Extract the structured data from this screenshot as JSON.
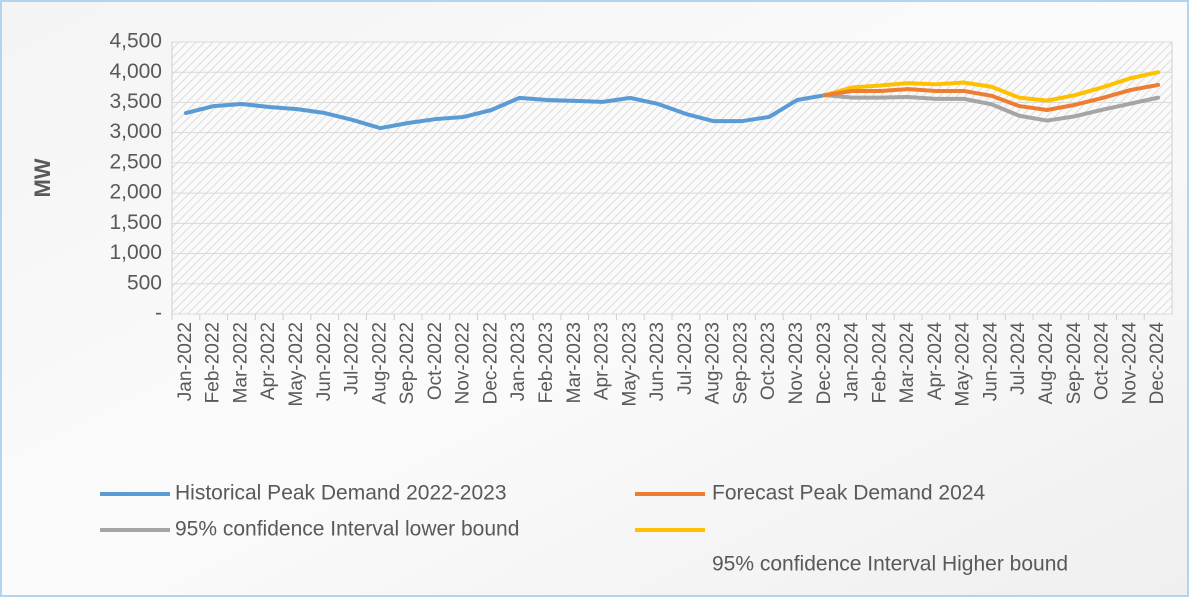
{
  "chart_data": {
    "type": "line",
    "y_label": "MW",
    "categories": [
      "Jan-2022",
      "Feb-2022",
      "Mar-2022",
      "Apr-2022",
      "May-2022",
      "Jun-2022",
      "Jul-2022",
      "Aug-2022",
      "Sep-2022",
      "Oct-2022",
      "Nov-2022",
      "Dec-2022",
      "Jan-2023",
      "Feb-2023",
      "Mar-2023",
      "Apr-2023",
      "May-2023",
      "Jun-2023",
      "Jul-2023",
      "Aug-2023",
      "Sep-2023",
      "Oct-2023",
      "Nov-2023",
      "Dec-2023",
      "Jan-2024",
      "Feb-2024",
      "Mar-2024",
      "Apr-2024",
      "May-2024",
      "Jun-2024",
      "Jul-2024",
      "Aug-2024",
      "Sep-2024",
      "Oct-2024",
      "Nov-2024",
      "Dec-2024"
    ],
    "series": [
      {
        "name": "Historical Peak Demand 2022-2023",
        "color": "#5b9bd5",
        "values": [
          3325,
          3440,
          3475,
          3425,
          3390,
          3325,
          3210,
          3075,
          3160,
          3225,
          3260,
          3375,
          3575,
          3540,
          3525,
          3510,
          3575,
          3475,
          3310,
          3190,
          3190,
          3260,
          3540,
          3620,
          null,
          null,
          null,
          null,
          null,
          null,
          null,
          null,
          null,
          null,
          null,
          null
        ]
      },
      {
        "name": "Forecast Peak Demand 2024",
        "color": "#ed7d31",
        "values": [
          null,
          null,
          null,
          null,
          null,
          null,
          null,
          null,
          null,
          null,
          null,
          null,
          null,
          null,
          null,
          null,
          null,
          null,
          null,
          null,
          null,
          null,
          null,
          3620,
          3690,
          3690,
          3720,
          3690,
          3690,
          3610,
          3440,
          3375,
          3460,
          3575,
          3705,
          3790
        ]
      },
      {
        "name": "95% confidence Interval lower bound",
        "color": "#a5a5a5",
        "values": [
          null,
          null,
          null,
          null,
          null,
          null,
          null,
          null,
          null,
          null,
          null,
          null,
          null,
          null,
          null,
          null,
          null,
          null,
          null,
          null,
          null,
          null,
          null,
          3620,
          3580,
          3580,
          3590,
          3560,
          3560,
          3470,
          3280,
          3200,
          3270,
          3380,
          3480,
          3580
        ]
      },
      {
        "name": "95% confidence Interval Higher bound",
        "color": "#ffc000",
        "values": [
          null,
          null,
          null,
          null,
          null,
          null,
          null,
          null,
          null,
          null,
          null,
          null,
          null,
          null,
          null,
          null,
          null,
          null,
          null,
          null,
          null,
          null,
          null,
          3620,
          3750,
          3780,
          3820,
          3800,
          3830,
          3760,
          3580,
          3530,
          3620,
          3750,
          3900,
          4000
        ]
      }
    ],
    "ylim": [
      0,
      4500
    ],
    "yticks": [
      {
        "value": 0,
        "label": "-"
      },
      500,
      {
        "value": 1000,
        "label": "1,000"
      },
      {
        "value": 1500,
        "label": "1,500"
      },
      {
        "value": 2000,
        "label": "2,000"
      },
      {
        "value": 2500,
        "label": "2,500"
      },
      {
        "value": 3000,
        "label": "3,000"
      },
      {
        "value": 3500,
        "label": "3,500"
      },
      {
        "value": 4000,
        "label": "4,000"
      },
      {
        "value": 4500,
        "label": "4,500"
      }
    ],
    "grid": true
  }
}
